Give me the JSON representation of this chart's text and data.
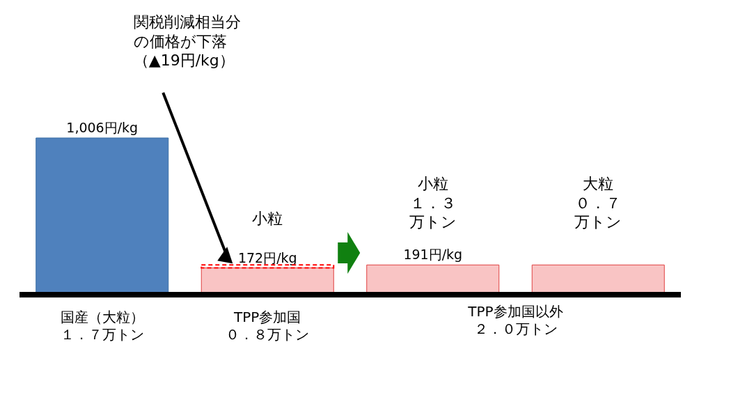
{
  "chart_data": {
    "type": "bar",
    "categories": [
      "国産（大粒）１．７万トン",
      "TPP参加国０．８万トン",
      null,
      null
    ],
    "values": [
      1006,
      172,
      191,
      191
    ],
    "colors": [
      "#4f81bd",
      "#f9c4c4",
      "#f9c4c4",
      "#f9c4c4"
    ],
    "value_labels": [
      "1,006円/kg",
      "172円/kg",
      "191円/kg",
      null
    ],
    "annotations": [
      "関税削減相当分の価格が下落（▲19円/kg）",
      "小粒",
      "小粒１．３万トン",
      "大粒０．７万トン",
      "TPP参加国以外２．０万トン"
    ]
  }
}
